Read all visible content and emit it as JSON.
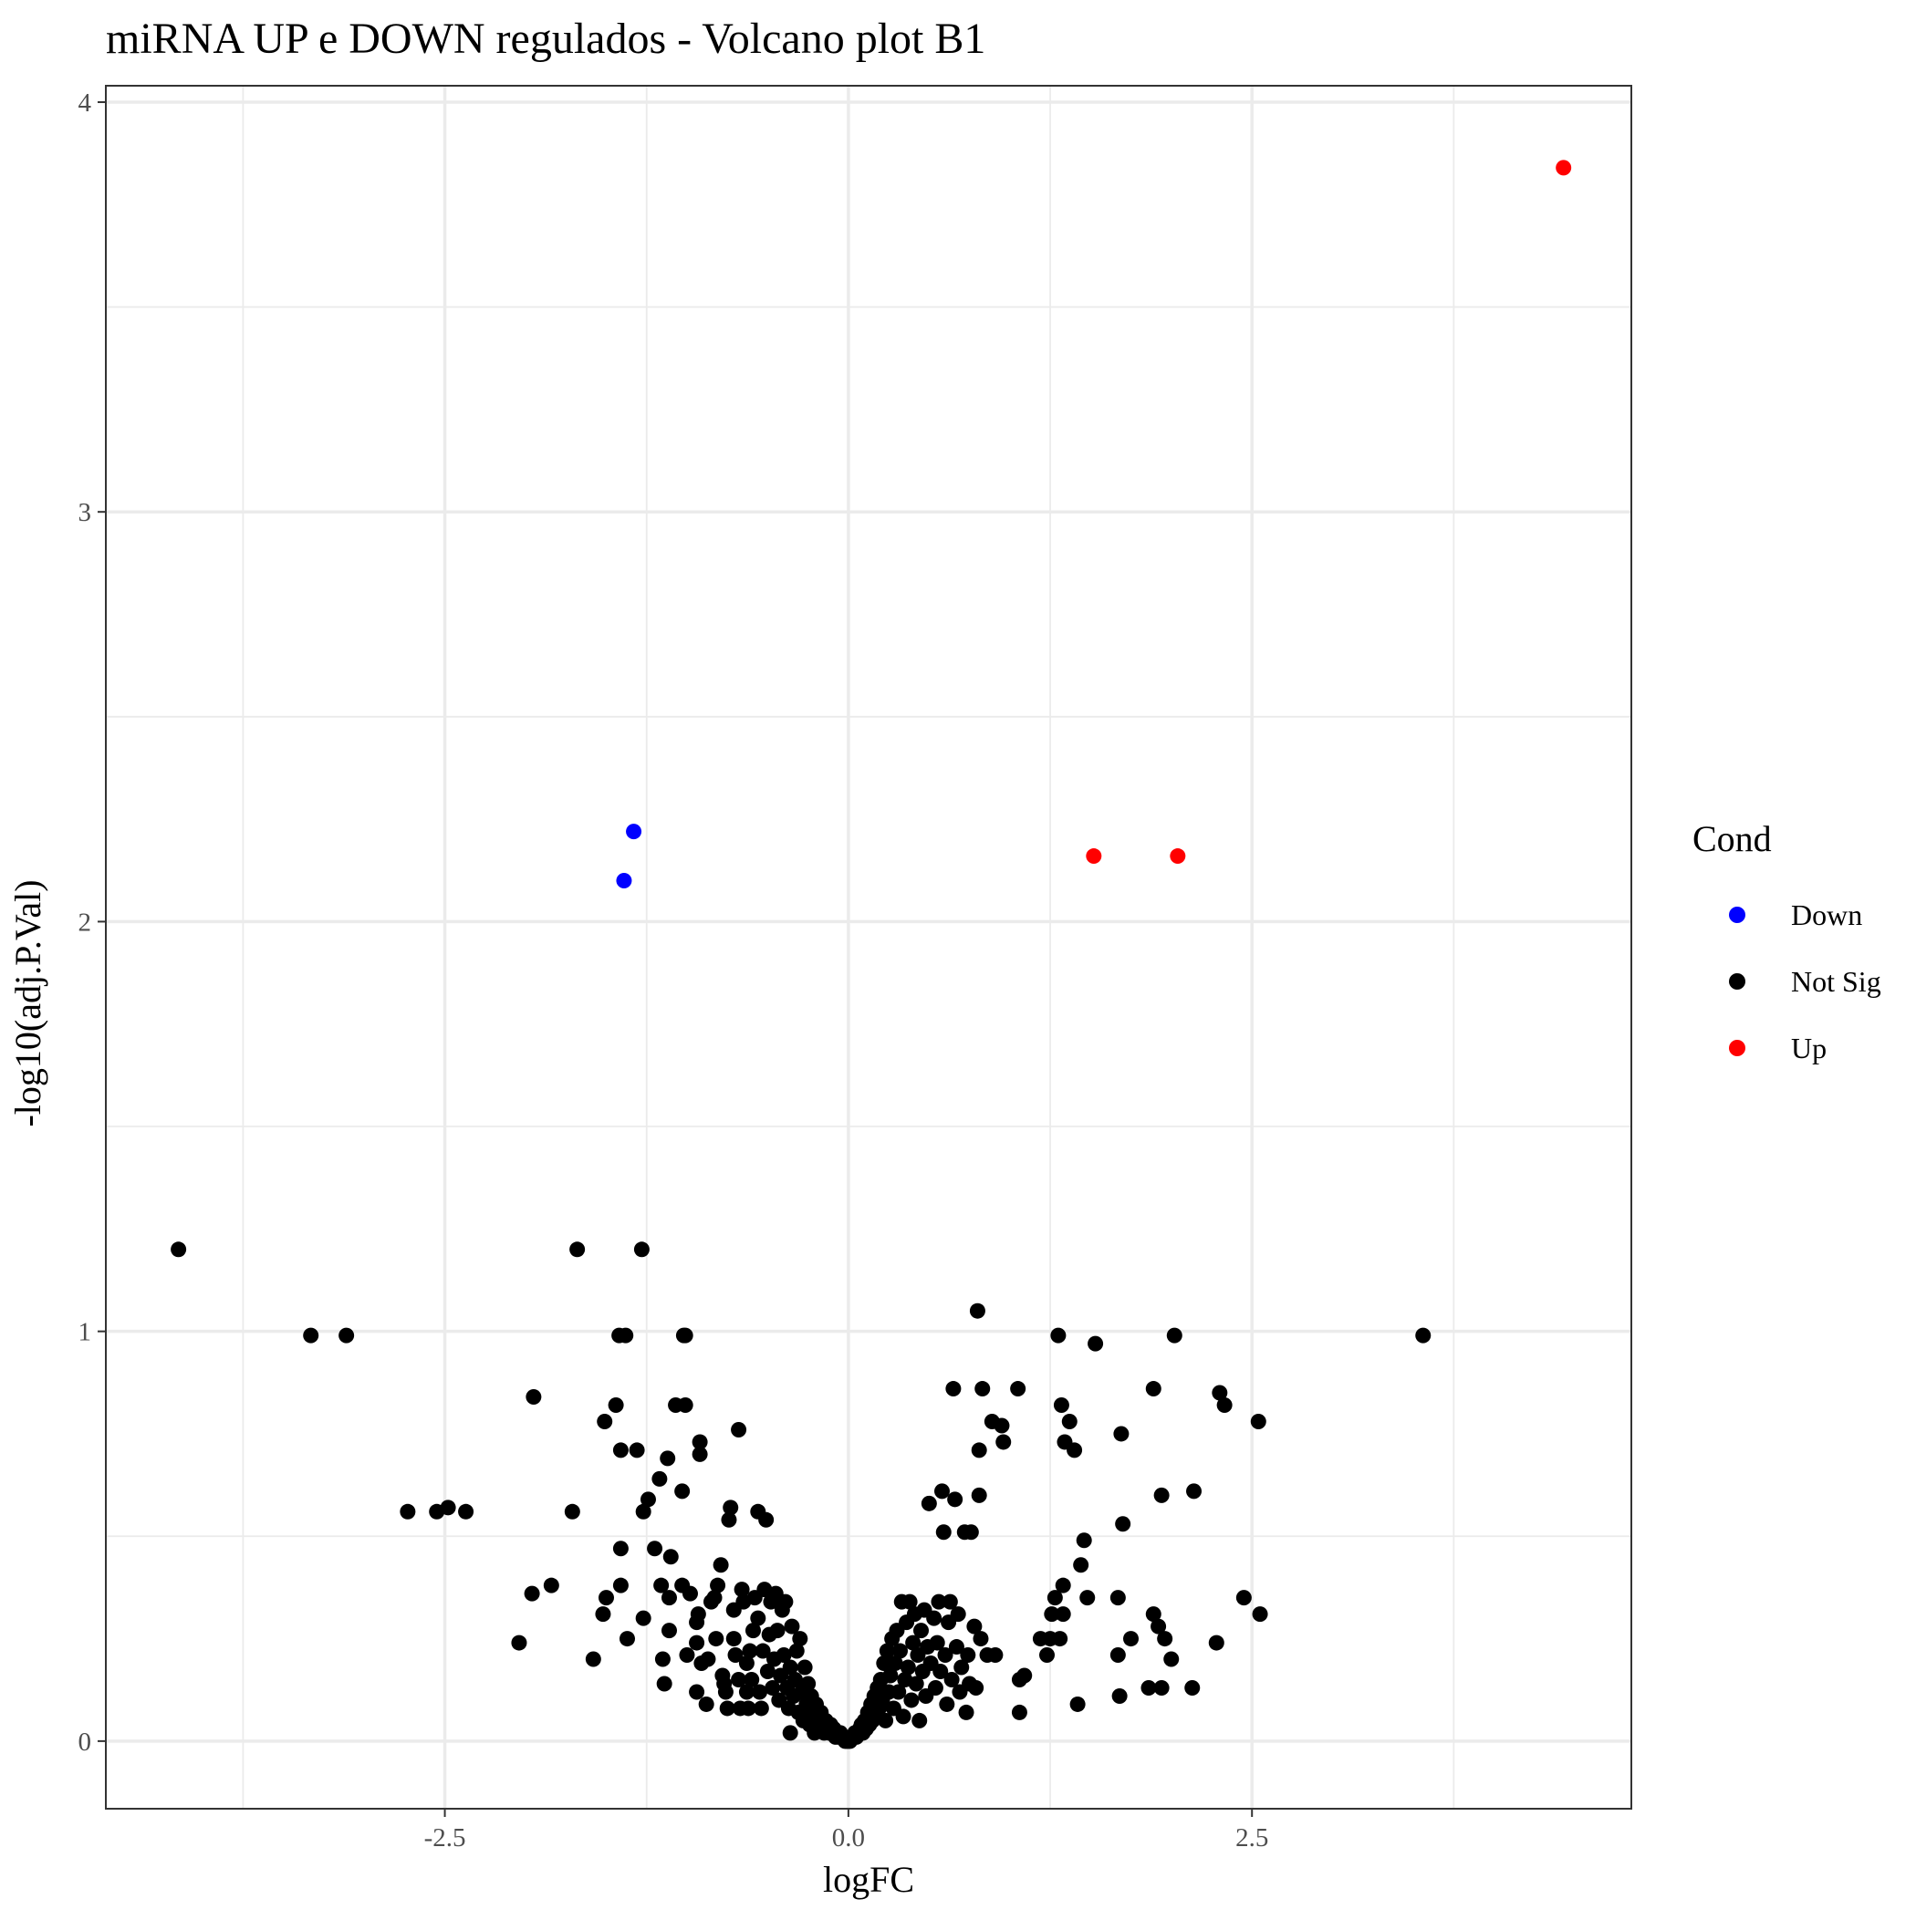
{
  "chart_data": {
    "type": "scatter",
    "title": "miRNA UP e DOWN regulados - Volcano plot B1",
    "xlabel": "logFC",
    "ylabel": "-log10(adj.P.Val)",
    "xlim": [
      -4.6,
      4.85
    ],
    "ylim": [
      -0.165,
      4.04
    ],
    "x_ticks": [
      -2.5,
      0.0,
      2.5
    ],
    "x_tick_labels": [
      "-2.5",
      "0.0",
      "2.5"
    ],
    "x_minor": [
      -3.75,
      -1.25,
      1.25,
      3.75
    ],
    "y_ticks": [
      0,
      1,
      2,
      3,
      4
    ],
    "y_tick_labels": [
      "0",
      "1",
      "2",
      "3",
      "4"
    ],
    "y_minor": [
      0.5,
      1.5,
      2.5,
      3.5
    ],
    "grid": true,
    "legend": {
      "title": "Cond",
      "position": "right",
      "entries": [
        {
          "label": "Down",
          "color": "#0000FF"
        },
        {
          "label": "Not Sig",
          "color": "#000000"
        },
        {
          "label": "Up",
          "color": "#FF0000"
        }
      ]
    },
    "series": [
      {
        "name": "Down",
        "color": "#0000FF",
        "points": [
          [
            -1.33,
            2.22
          ],
          [
            -1.39,
            2.1
          ]
        ]
      },
      {
        "name": "Not Sig",
        "color": "#000000",
        "points": [
          [
            -4.15,
            1.2
          ],
          [
            -3.33,
            0.99
          ],
          [
            -3.11,
            0.99
          ],
          [
            -2.73,
            0.56
          ],
          [
            -2.55,
            0.56
          ],
          [
            -2.48,
            0.57
          ],
          [
            -2.37,
            0.56
          ],
          [
            -2.04,
            0.24
          ],
          [
            -1.96,
            0.36
          ],
          [
            -1.95,
            0.84
          ],
          [
            -1.84,
            0.38
          ],
          [
            -1.71,
            0.56
          ],
          [
            -1.68,
            1.2
          ],
          [
            -1.58,
            0.2
          ],
          [
            -1.52,
            0.31
          ],
          [
            -1.51,
            0.78
          ],
          [
            -1.5,
            0.35
          ],
          [
            -1.44,
            0.82
          ],
          [
            -1.42,
            0.99
          ],
          [
            -1.41,
            0.71
          ],
          [
            -1.41,
            0.47
          ],
          [
            -1.41,
            0.38
          ],
          [
            -1.38,
            0.99
          ],
          [
            -1.37,
            0.25
          ],
          [
            -1.31,
            0.71
          ],
          [
            -1.28,
            1.2
          ],
          [
            -1.27,
            0.56
          ],
          [
            -1.27,
            0.3
          ],
          [
            -1.24,
            0.59
          ],
          [
            -1.2,
            0.47
          ],
          [
            -1.17,
            0.64
          ],
          [
            -1.16,
            0.38
          ],
          [
            -1.15,
            0.2
          ],
          [
            -1.14,
            0.14
          ],
          [
            -1.12,
            0.69
          ],
          [
            -1.11,
            0.35
          ],
          [
            -1.11,
            0.27
          ],
          [
            -1.1,
            0.45
          ],
          [
            -1.07,
            0.82
          ],
          [
            -1.03,
            0.38
          ],
          [
            -1.03,
            0.61
          ],
          [
            -1.02,
            0.99
          ],
          [
            -1.01,
            0.82
          ],
          [
            -1.01,
            0.99
          ],
          [
            -1.0,
            0.21
          ],
          [
            -0.98,
            0.36
          ],
          [
            -0.94,
            0.24
          ],
          [
            -0.94,
            0.29
          ],
          [
            -0.94,
            0.12
          ],
          [
            -0.93,
            0.31
          ],
          [
            -0.92,
            0.7
          ],
          [
            -0.92,
            0.73
          ],
          [
            -0.91,
            0.19
          ],
          [
            -0.88,
            0.09
          ],
          [
            -0.87,
            0.2
          ],
          [
            -0.85,
            0.34
          ],
          [
            -0.83,
            0.35
          ],
          [
            -0.82,
            0.25
          ],
          [
            -0.81,
            0.38
          ],
          [
            -0.79,
            0.43
          ],
          [
            -0.78,
            0.16
          ],
          [
            -0.77,
            0.14
          ],
          [
            -0.76,
            0.12
          ],
          [
            -0.75,
            0.08
          ],
          [
            -0.74,
            0.54
          ],
          [
            -0.73,
            0.57
          ],
          [
            -0.71,
            0.32
          ],
          [
            -0.71,
            0.25
          ],
          [
            -0.7,
            0.21
          ],
          [
            -0.68,
            0.76
          ],
          [
            -0.68,
            0.15
          ],
          [
            -0.67,
            0.08
          ],
          [
            -0.66,
            0.37
          ],
          [
            -0.65,
            0.34
          ],
          [
            -0.63,
            0.19
          ],
          [
            -0.63,
            0.12
          ],
          [
            -0.62,
            0.08
          ],
          [
            -0.61,
            0.22
          ],
          [
            -0.6,
            0.15
          ],
          [
            -0.59,
            0.27
          ],
          [
            -0.58,
            0.35
          ],
          [
            -0.56,
            0.56
          ],
          [
            -0.56,
            0.3
          ],
          [
            -0.55,
            0.12
          ],
          [
            -0.54,
            0.08
          ],
          [
            -0.53,
            0.22
          ],
          [
            -0.52,
            0.37
          ],
          [
            -0.51,
            0.54
          ],
          [
            -0.5,
            0.17
          ],
          [
            -0.49,
            0.26
          ],
          [
            -0.48,
            0.34
          ],
          [
            -0.47,
            0.13
          ],
          [
            -0.46,
            0.2
          ],
          [
            -0.45,
            0.36
          ],
          [
            -0.44,
            0.27
          ],
          [
            -0.43,
            0.1
          ],
          [
            -0.42,
            0.16
          ],
          [
            -0.41,
            0.32
          ],
          [
            -0.4,
            0.21
          ],
          [
            -0.39,
            0.34
          ],
          [
            -0.38,
            0.13
          ],
          [
            -0.37,
            0.08
          ],
          [
            -0.36,
            0.02
          ],
          [
            -0.36,
            0.18
          ],
          [
            -0.35,
            0.28
          ],
          [
            -0.34,
            0.11
          ],
          [
            -0.33,
            0.15
          ],
          [
            -0.32,
            0.22
          ],
          [
            -0.31,
            0.07
          ],
          [
            -0.3,
            0.25
          ],
          [
            -0.29,
            0.12
          ],
          [
            -0.28,
            0.05
          ],
          [
            -0.27,
            0.18
          ],
          [
            -0.26,
            0.09
          ],
          [
            -0.25,
            0.14
          ],
          [
            -0.24,
            0.04
          ],
          [
            -0.23,
            0.11
          ],
          [
            -0.22,
            0.07
          ],
          [
            -0.21,
            0.02
          ],
          [
            -0.2,
            0.09
          ],
          [
            -0.19,
            0.05
          ],
          [
            -0.18,
            0.03
          ],
          [
            -0.17,
            0.07
          ],
          [
            -0.16,
            0.04
          ],
          [
            -0.15,
            0.02
          ],
          [
            -0.14,
            0.05
          ],
          [
            -0.13,
            0.03
          ],
          [
            -0.12,
            0.02
          ],
          [
            -0.11,
            0.04
          ],
          [
            -0.1,
            0.02
          ],
          [
            -0.09,
            0.03
          ],
          [
            -0.08,
            0.01
          ],
          [
            -0.07,
            0.02
          ],
          [
            -0.06,
            0.01
          ],
          [
            -0.05,
            0.02
          ],
          [
            -0.04,
            0.01
          ],
          [
            -0.03,
            0.01
          ],
          [
            -0.02,
            0.0
          ],
          [
            -0.01,
            0.0
          ],
          [
            0.0,
            0.0
          ],
          [
            0.01,
            0.0
          ],
          [
            0.02,
            0.01
          ],
          [
            0.03,
            0.01
          ],
          [
            0.04,
            0.02
          ],
          [
            0.05,
            0.01
          ],
          [
            0.06,
            0.02
          ],
          [
            0.07,
            0.03
          ],
          [
            0.08,
            0.04
          ],
          [
            0.09,
            0.02
          ],
          [
            0.1,
            0.05
          ],
          [
            0.11,
            0.03
          ],
          [
            0.12,
            0.07
          ],
          [
            0.13,
            0.04
          ],
          [
            0.14,
            0.09
          ],
          [
            0.15,
            0.05
          ],
          [
            0.16,
            0.11
          ],
          [
            0.17,
            0.06
          ],
          [
            0.18,
            0.13
          ],
          [
            0.19,
            0.08
          ],
          [
            0.2,
            0.15
          ],
          [
            0.21,
            0.1
          ],
          [
            0.22,
            0.19
          ],
          [
            0.23,
            0.05
          ],
          [
            0.24,
            0.22
          ],
          [
            0.25,
            0.12
          ],
          [
            0.26,
            0.16
          ],
          [
            0.27,
            0.25
          ],
          [
            0.28,
            0.08
          ],
          [
            0.29,
            0.19
          ],
          [
            0.3,
            0.27
          ],
          [
            0.31,
            0.12
          ],
          [
            0.32,
            0.22
          ],
          [
            0.33,
            0.34
          ],
          [
            0.34,
            0.06
          ],
          [
            0.35,
            0.15
          ],
          [
            0.36,
            0.29
          ],
          [
            0.37,
            0.18
          ],
          [
            0.38,
            0.34
          ],
          [
            0.39,
            0.1
          ],
          [
            0.4,
            0.24
          ],
          [
            0.41,
            0.31
          ],
          [
            0.42,
            0.14
          ],
          [
            0.43,
            0.21
          ],
          [
            0.44,
            0.05
          ],
          [
            0.45,
            0.27
          ],
          [
            0.46,
            0.17
          ],
          [
            0.47,
            0.32
          ],
          [
            0.48,
            0.11
          ],
          [
            0.49,
            0.23
          ],
          [
            0.5,
            0.58
          ],
          [
            0.51,
            0.19
          ],
          [
            0.53,
            0.3
          ],
          [
            0.54,
            0.13
          ],
          [
            0.55,
            0.24
          ],
          [
            0.56,
            0.34
          ],
          [
            0.57,
            0.17
          ],
          [
            0.58,
            0.61
          ],
          [
            0.59,
            0.51
          ],
          [
            0.6,
            0.21
          ],
          [
            0.61,
            0.09
          ],
          [
            0.62,
            0.29
          ],
          [
            0.63,
            0.34
          ],
          [
            0.64,
            0.15
          ],
          [
            0.65,
            0.86
          ],
          [
            0.66,
            0.59
          ],
          [
            0.67,
            0.23
          ],
          [
            0.68,
            0.31
          ],
          [
            0.69,
            0.12
          ],
          [
            0.7,
            0.18
          ],
          [
            0.72,
            0.51
          ],
          [
            0.73,
            0.07
          ],
          [
            0.74,
            0.21
          ],
          [
            0.75,
            0.14
          ],
          [
            0.76,
            0.51
          ],
          [
            0.78,
            0.28
          ],
          [
            0.79,
            0.13
          ],
          [
            0.8,
            1.05
          ],
          [
            0.81,
            0.6
          ],
          [
            0.81,
            0.71
          ],
          [
            0.82,
            0.25
          ],
          [
            0.83,
            0.86
          ],
          [
            0.86,
            0.21
          ],
          [
            0.89,
            0.78
          ],
          [
            0.91,
            0.21
          ],
          [
            0.95,
            0.77
          ],
          [
            0.96,
            0.73
          ],
          [
            1.05,
            0.86
          ],
          [
            1.06,
            0.15
          ],
          [
            1.06,
            0.07
          ],
          [
            1.09,
            0.16
          ],
          [
            1.19,
            0.25
          ],
          [
            1.23,
            0.21
          ],
          [
            1.25,
            0.25
          ],
          [
            1.26,
            0.31
          ],
          [
            1.28,
            0.35
          ],
          [
            1.3,
            0.99
          ],
          [
            1.31,
            0.25
          ],
          [
            1.32,
            0.82
          ],
          [
            1.33,
            0.31
          ],
          [
            1.33,
            0.38
          ],
          [
            1.34,
            0.73
          ],
          [
            1.37,
            0.78
          ],
          [
            1.4,
            0.71
          ],
          [
            1.42,
            0.09
          ],
          [
            1.44,
            0.43
          ],
          [
            1.46,
            0.49
          ],
          [
            1.48,
            0.35
          ],
          [
            1.53,
            0.97
          ],
          [
            1.67,
            0.21
          ],
          [
            1.67,
            0.35
          ],
          [
            1.68,
            0.11
          ],
          [
            1.69,
            0.75
          ],
          [
            1.7,
            0.53
          ],
          [
            1.75,
            0.25
          ],
          [
            1.86,
            0.13
          ],
          [
            1.89,
            0.86
          ],
          [
            1.89,
            0.31
          ],
          [
            1.92,
            0.28
          ],
          [
            1.94,
            0.6
          ],
          [
            1.94,
            0.13
          ],
          [
            1.96,
            0.25
          ],
          [
            2.0,
            0.2
          ],
          [
            2.02,
            0.99
          ],
          [
            2.13,
            0.13
          ],
          [
            2.14,
            0.61
          ],
          [
            2.28,
            0.24
          ],
          [
            2.3,
            0.85
          ],
          [
            2.33,
            0.82
          ],
          [
            2.45,
            0.35
          ],
          [
            2.54,
            0.78
          ],
          [
            2.55,
            0.31
          ],
          [
            3.56,
            0.99
          ]
        ]
      },
      {
        "name": "Up",
        "color": "#FF0000",
        "points": [
          [
            1.52,
            2.16
          ],
          [
            2.04,
            2.16
          ],
          [
            4.43,
            3.84
          ]
        ]
      }
    ]
  }
}
